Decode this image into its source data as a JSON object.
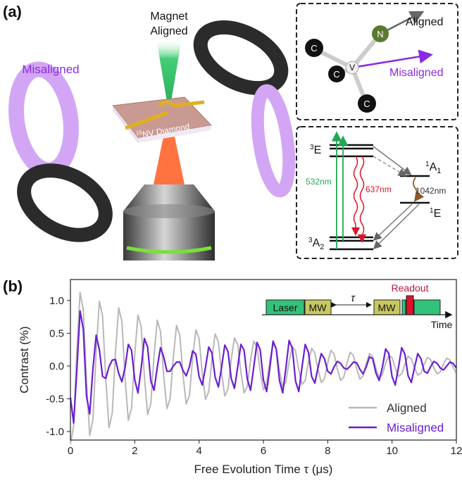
{
  "panel_a": {
    "label": "(a)",
    "magnet_label": [
      "Magnet",
      "Aligned"
    ],
    "misaligned_label": "Misaligned",
    "diamond_label": {
      "sup": "15",
      "text": "NV Diamond"
    },
    "defect": {
      "atoms": [
        "C",
        "C",
        "C",
        "V",
        "N"
      ],
      "aligned": "Aligned",
      "misaligned": "Misaligned"
    },
    "levels": {
      "triplet_excited": {
        "sup": "3",
        "text": "E"
      },
      "singlet_upper": {
        "sup": "1",
        "text": "A",
        "sub": "1"
      },
      "singlet_lower": {
        "sup": "1",
        "text": "E"
      },
      "triplet_ground": {
        "sup": "3",
        "text": "A",
        "sub": "2"
      }
    },
    "transitions": [
      "532nm",
      "637nm",
      "1042nm"
    ]
  },
  "panel_b": {
    "label": "(b)"
  },
  "chart_data": {
    "type": "line",
    "xlabel": "Free Evolution Time τ (μs)",
    "ylabel": "Contrast (%)",
    "xlim": [
      0,
      12
    ],
    "ylim": [
      -1.13,
      1.32
    ],
    "xticks": [
      0,
      2,
      4,
      6,
      8,
      10,
      12
    ],
    "yticks": [
      {
        "value": -1,
        "label": "-1.0"
      },
      {
        "value": -0.5,
        "label": "-0.5"
      },
      {
        "value": 0,
        "label": "0.0"
      },
      {
        "value": 0.5,
        "label": "0.5"
      },
      {
        "value": 1,
        "label": "1.0"
      }
    ],
    "legend": "lower right",
    "inset": {
      "blocks": [
        "Laser",
        "MW",
        "MW"
      ],
      "tau": "τ",
      "readout": "Readout",
      "axis": "Time"
    },
    "x": [
      0,
      0.1,
      0.2,
      0.3,
      0.4,
      0.5,
      0.6,
      0.7,
      0.8,
      0.9,
      1,
      1.1,
      1.2,
      1.3,
      1.4,
      1.5,
      1.6,
      1.7,
      1.8,
      1.9,
      2,
      2.1,
      2.2,
      2.3,
      2.4,
      2.5,
      2.6,
      2.7,
      2.8,
      2.9,
      3,
      3.1,
      3.2,
      3.3,
      3.4,
      3.5,
      3.6,
      3.7,
      3.8,
      3.9,
      4,
      4.1,
      4.2,
      4.3,
      4.4,
      4.5,
      4.6,
      4.7,
      4.8,
      4.9,
      5,
      5.1,
      5.2,
      5.3,
      5.4,
      5.5,
      5.6,
      5.7,
      5.8,
      5.9,
      6,
      6.1,
      6.2,
      6.3,
      6.4,
      6.5,
      6.6,
      6.7,
      6.8,
      6.9,
      7,
      7.1,
      7.2,
      7.3,
      7.4,
      7.5,
      7.6,
      7.7,
      7.8,
      7.9,
      8,
      8.1,
      8.2,
      8.3,
      8.4,
      8.5,
      8.6,
      8.7,
      8.8,
      8.9,
      9,
      9.1,
      9.2,
      9.3,
      9.4,
      9.5,
      9.6,
      9.7,
      9.8,
      9.9,
      10,
      10.1,
      10.2,
      10.3,
      10.4,
      10.5,
      10.6,
      10.7,
      10.8,
      10.9,
      11,
      11.1,
      11.2,
      11.3,
      11.4,
      11.5,
      11.6,
      11.7,
      11.8,
      11.9,
      12
    ],
    "series": [
      {
        "name": "Aligned",
        "color": "#b8b8b8",
        "values": [
          -1.19,
          -0.91,
          0.25,
          1.12,
          0.86,
          -0.24,
          -1.06,
          -0.81,
          0.22,
          0.99,
          0.76,
          -0.21,
          -0.94,
          -0.72,
          0.2,
          0.89,
          0.68,
          -0.19,
          -0.83,
          -0.64,
          0.17,
          0.78,
          0.6,
          -0.16,
          -0.74,
          -0.57,
          0.16,
          0.7,
          0.53,
          -0.15,
          -0.65,
          -0.5,
          0.14,
          0.62,
          0.47,
          -0.13,
          -0.58,
          -0.45,
          0.12,
          0.55,
          0.42,
          -0.11,
          -0.51,
          -0.39,
          0.11,
          0.49,
          0.37,
          -0.1,
          -0.46,
          -0.35,
          0.1,
          0.43,
          0.33,
          -0.09,
          -0.41,
          -0.31,
          0.09,
          0.38,
          0.29,
          -0.08,
          -0.36,
          -0.27,
          0.08,
          0.34,
          0.26,
          -0.07,
          -0.32,
          -0.24,
          0.07,
          0.3,
          0.23,
          -0.06,
          -0.28,
          -0.22,
          0.06,
          0.27,
          0.2,
          -0.06,
          -0.25,
          -0.19,
          0.05,
          0.24,
          0.18,
          -0.05,
          -0.22,
          -0.17,
          0.05,
          0.21,
          0.16,
          -0.04,
          -0.2,
          -0.15,
          0.04,
          0.19,
          0.14,
          -0.04,
          -0.18,
          -0.13,
          0.04,
          0.16,
          0.13,
          -0.03,
          -0.16,
          -0.12,
          0.03,
          0.15,
          0.11,
          -0.03,
          -0.14,
          -0.11,
          0.03,
          0.13,
          0.1,
          -0.03,
          -0.12,
          -0.09,
          0.03,
          0.12,
          0.09,
          -0.02,
          -0.11
        ]
      },
      {
        "name": "Misaligned",
        "color": "#6a1fd1",
        "values": [
          -0.48,
          -0.87,
          -0.06,
          0.84,
          0.56,
          -0.46,
          -0.73,
          -0.04,
          0.47,
          0.25,
          -0.16,
          -0.19,
          -0.01,
          0.09,
          0.1,
          -0.11,
          -0.24,
          -0.02,
          0.33,
          0.24,
          -0.21,
          -0.41,
          -0.03,
          0.42,
          0.29,
          -0.23,
          -0.37,
          -0.02,
          0.28,
          0.14,
          -0.08,
          -0.08,
          0,
          0.06,
          0.06,
          -0.07,
          -0.15,
          -0.01,
          0.23,
          0.18,
          -0.16,
          -0.29,
          -0.02,
          0.29,
          0.2,
          -0.17,
          -0.32,
          -0.02,
          0.32,
          0.22,
          -0.19,
          -0.34,
          -0.02,
          0.33,
          0.24,
          -0.2,
          -0.37,
          -0.02,
          0.36,
          0.25,
          -0.21,
          -0.39,
          -0.03,
          0.38,
          0.26,
          -0.22,
          -0.41,
          -0.03,
          0.39,
          0.27,
          -0.23,
          -0.39,
          -0.02,
          0.33,
          0.21,
          -0.16,
          -0.26,
          -0.02,
          0.19,
          0.11,
          -0.08,
          -0.12,
          -0.01,
          0.07,
          0.04,
          -0.03,
          -0.05,
          0,
          0.06,
          0.05,
          -0.05,
          -0.12,
          -0.01,
          0.14,
          0.11,
          -0.11,
          -0.22,
          -0.02,
          0.26,
          0.19,
          -0.16,
          -0.29,
          -0.02,
          0.28,
          0.18,
          -0.15,
          -0.25,
          -0.02,
          0.19,
          0.11,
          -0.08,
          -0.11,
          -0.01,
          0.07,
          0.04,
          -0.03,
          -0.06,
          0,
          0.06,
          0.04,
          -0.03
        ]
      }
    ]
  }
}
